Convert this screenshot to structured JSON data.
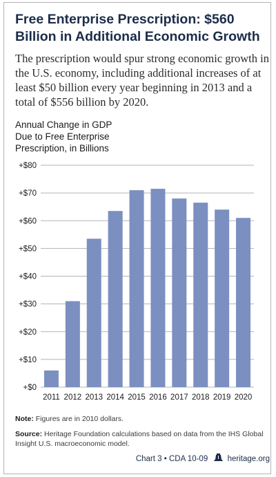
{
  "header": {
    "title": "Free Enterprise Prescription: $560 Billion in Additional Economic Growth",
    "subtitle": "The prescription would spur strong economic growth in the U.S. economy, including additional increases of at least $50 billion every year beginning in 2013 and a total of $556 billion by 2020."
  },
  "chart_data": {
    "type": "bar",
    "ylabel": "Annual Change in GDP\nDue to Free Enterprise\nPrescription, in Billions",
    "categories": [
      "2011",
      "2012",
      "2013",
      "2014",
      "2015",
      "2016",
      "2017",
      "2018",
      "2019",
      "2020"
    ],
    "values": [
      6,
      31,
      53.5,
      63.5,
      71,
      71.5,
      68,
      66.5,
      64,
      61
    ],
    "ylim": [
      0,
      80
    ],
    "yticks": [
      0,
      10,
      20,
      30,
      40,
      50,
      60,
      70,
      80
    ],
    "ytick_labels": [
      "+$0",
      "+$10",
      "+$20",
      "+$30",
      "+$40",
      "+$50",
      "+$60",
      "+$70",
      "+$80"
    ],
    "grid": true,
    "bar_color": "#7b8fc1",
    "grid_color": "#b3b3b3"
  },
  "notes": {
    "note_label": "Note:",
    "note_text": "Figures are in 2010 dollars.",
    "source_label": "Source:",
    "source_text": "Heritage Foundation calculations based on data from the IHS Global Insight U.S. macroeconomic model."
  },
  "footer": {
    "chart_id": "Chart 3 • CDA 10-09",
    "site": "heritage.org",
    "logo_icon": "liberty-bell-icon"
  }
}
